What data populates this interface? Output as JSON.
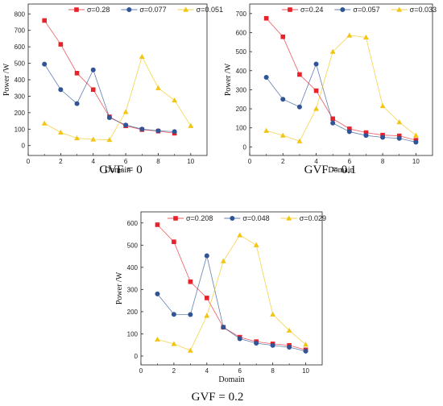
{
  "chart_data": [
    {
      "type": "line",
      "caption": "GVF = 0",
      "xlabel": "Domain",
      "ylabel": "Power /W",
      "xlim": [
        0,
        11
      ],
      "ylim": [
        -60,
        860
      ],
      "xticks": [
        0,
        2,
        4,
        6,
        8,
        10
      ],
      "yticks": [
        0,
        100,
        200,
        300,
        400,
        500,
        600,
        700,
        800
      ],
      "grid": false,
      "legend": "top",
      "series": [
        {
          "name": "σ=0.28",
          "color": "#e8212a",
          "marker": "square",
          "x": [
            1,
            2,
            3,
            4,
            5,
            6,
            7,
            8,
            9
          ],
          "y": [
            760,
            615,
            440,
            340,
            175,
            120,
            97,
            88,
            75
          ]
        },
        {
          "name": "σ=0.077",
          "color": "#2f5597",
          "marker": "circle",
          "x": [
            1,
            2,
            3,
            4,
            5,
            6,
            7,
            8,
            9
          ],
          "y": [
            495,
            340,
            255,
            460,
            170,
            125,
            100,
            90,
            85
          ]
        },
        {
          "name": "σ=0.051",
          "color": "#f2c511",
          "marker": "triangle",
          "x": [
            1,
            2,
            3,
            4,
            5,
            6,
            7,
            8,
            9,
            10
          ],
          "y": [
            135,
            80,
            45,
            38,
            35,
            205,
            540,
            350,
            275,
            120
          ]
        }
      ]
    },
    {
      "type": "line",
      "caption": "GVF = 0.1",
      "xlabel": "Domain",
      "ylabel": "Power /W",
      "xlim": [
        0,
        11
      ],
      "ylim": [
        -45,
        750
      ],
      "xticks": [
        0,
        2,
        4,
        6,
        8,
        10
      ],
      "yticks": [
        0,
        100,
        200,
        300,
        400,
        500,
        600,
        700
      ],
      "grid": false,
      "legend": "top",
      "series": [
        {
          "name": "σ=0.24",
          "color": "#e8212a",
          "marker": "square",
          "x": [
            1,
            2,
            3,
            4,
            5,
            6,
            7,
            8,
            9,
            10
          ],
          "y": [
            675,
            578,
            380,
            295,
            148,
            95,
            75,
            62,
            58,
            35
          ]
        },
        {
          "name": "σ=0.057",
          "color": "#2f5597",
          "marker": "circle",
          "x": [
            1,
            2,
            3,
            4,
            5,
            6,
            7,
            8,
            9,
            10
          ],
          "y": [
            365,
            250,
            210,
            435,
            125,
            80,
            60,
            50,
            45,
            25
          ]
        },
        {
          "name": "σ=0.033",
          "color": "#f2c511",
          "marker": "triangle",
          "x": [
            1,
            2,
            3,
            4,
            5,
            6,
            7,
            8,
            9,
            10
          ],
          "y": [
            85,
            60,
            30,
            200,
            500,
            585,
            575,
            215,
            130,
            60
          ]
        }
      ]
    },
    {
      "type": "line",
      "caption": "GVF = 0.2",
      "xlabel": "Domain",
      "ylabel": "Power /W",
      "xlim": [
        0,
        11
      ],
      "ylim": [
        -40,
        650
      ],
      "xticks": [
        0,
        2,
        4,
        6,
        8,
        10
      ],
      "yticks": [
        0,
        100,
        200,
        300,
        400,
        500,
        600
      ],
      "grid": false,
      "legend": "top",
      "series": [
        {
          "name": "σ=0.208",
          "color": "#e8212a",
          "marker": "square",
          "x": [
            1,
            2,
            3,
            4,
            5,
            6,
            7,
            8,
            9,
            10
          ],
          "y": [
            592,
            515,
            335,
            262,
            130,
            85,
            65,
            55,
            48,
            28
          ]
        },
        {
          "name": "σ=0.048",
          "color": "#2f5597",
          "marker": "circle",
          "x": [
            1,
            2,
            3,
            4,
            5,
            6,
            7,
            8,
            9,
            10
          ],
          "y": [
            280,
            188,
            187,
            452,
            130,
            78,
            58,
            48,
            40,
            22
          ]
        },
        {
          "name": "σ=0.029",
          "color": "#f2c511",
          "marker": "triangle",
          "x": [
            1,
            2,
            3,
            4,
            5,
            6,
            7,
            8,
            9,
            10
          ],
          "y": [
            75,
            55,
            25,
            182,
            428,
            545,
            500,
            188,
            115,
            52
          ]
        }
      ]
    }
  ]
}
